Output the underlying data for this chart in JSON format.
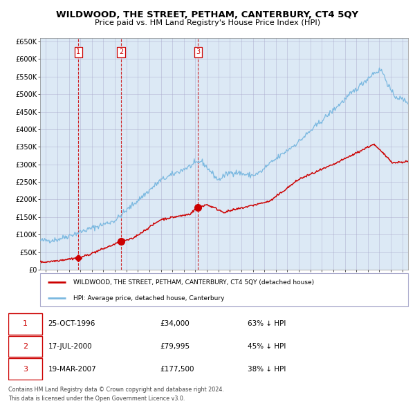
{
  "title": "WILDWOOD, THE STREET, PETHAM, CANTERBURY, CT4 5QY",
  "subtitle": "Price paid vs. HM Land Registry's House Price Index (HPI)",
  "footer_line1": "Contains HM Land Registry data © Crown copyright and database right 2024.",
  "footer_line2": "This data is licensed under the Open Government Licence v3.0.",
  "legend_red": "WILDWOOD, THE STREET, PETHAM, CANTERBURY, CT4 5QY (detached house)",
  "legend_blue": "HPI: Average price, detached house, Canterbury",
  "transactions": [
    {
      "num": 1,
      "date": "25-OCT-1996",
      "price": "£34,000",
      "hpi": "63% ↓ HPI",
      "year": 1996.82
    },
    {
      "num": 2,
      "date": "17-JUL-2000",
      "price": "£79,995",
      "hpi": "45% ↓ HPI",
      "year": 2000.54
    },
    {
      "num": 3,
      "date": "19-MAR-2007",
      "price": "£177,500",
      "hpi": "38% ↓ HPI",
      "year": 2007.22
    }
  ],
  "sale_prices": [
    34000,
    79995,
    177500
  ],
  "sale_years": [
    1996.82,
    2000.54,
    2007.22
  ],
  "hpi_color": "#7ab8e0",
  "price_color": "#cc0000",
  "plot_bg": "#dce9f5",
  "grid_color": "#aaaacc",
  "vline_color": "#cc0000",
  "ylim": [
    0,
    660000
  ],
  "xlim_left": 1993.5,
  "xlim_right": 2025.5
}
